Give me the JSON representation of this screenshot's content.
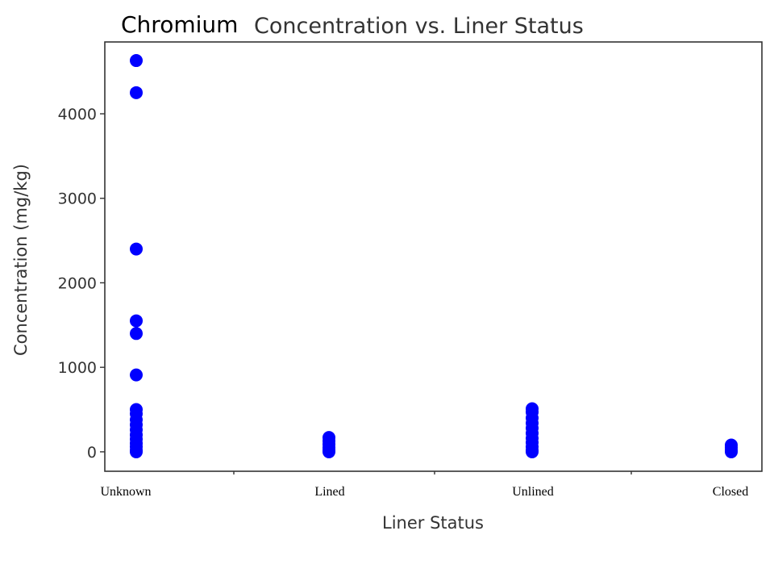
{
  "chart_data": {
    "type": "scatter",
    "title_prefix": "Chromium",
    "title": "Concentration vs. Liner Status",
    "xlabel": "Liner Status",
    "ylabel": "Concentration (mg/kg)",
    "categories": [
      "Unknown",
      "Lined",
      "Unlined",
      "Closed"
    ],
    "ylim": [
      -230,
      4850
    ],
    "yticks": [
      0,
      1000,
      2000,
      3000,
      4000
    ],
    "grid": false,
    "marker_color": "#0000ff",
    "points": [
      {
        "x": "Unknown",
        "y": 4630
      },
      {
        "x": "Unknown",
        "y": 4250
      },
      {
        "x": "Unknown",
        "y": 2400
      },
      {
        "x": "Unknown",
        "y": 1550
      },
      {
        "x": "Unknown",
        "y": 1400
      },
      {
        "x": "Unknown",
        "y": 910
      },
      {
        "x": "Unknown",
        "y": 500
      },
      {
        "x": "Unknown",
        "y": 450
      },
      {
        "x": "Unknown",
        "y": 380
      },
      {
        "x": "Unknown",
        "y": 320
      },
      {
        "x": "Unknown",
        "y": 260
      },
      {
        "x": "Unknown",
        "y": 200
      },
      {
        "x": "Unknown",
        "y": 150
      },
      {
        "x": "Unknown",
        "y": 100
      },
      {
        "x": "Unknown",
        "y": 60
      },
      {
        "x": "Unknown",
        "y": 20
      },
      {
        "x": "Unknown",
        "y": 0
      },
      {
        "x": "Lined",
        "y": 170
      },
      {
        "x": "Lined",
        "y": 130
      },
      {
        "x": "Lined",
        "y": 90
      },
      {
        "x": "Lined",
        "y": 50
      },
      {
        "x": "Lined",
        "y": 20
      },
      {
        "x": "Lined",
        "y": 0
      },
      {
        "x": "Unlined",
        "y": 510
      },
      {
        "x": "Unlined",
        "y": 470
      },
      {
        "x": "Unlined",
        "y": 400
      },
      {
        "x": "Unlined",
        "y": 340
      },
      {
        "x": "Unlined",
        "y": 280
      },
      {
        "x": "Unlined",
        "y": 220
      },
      {
        "x": "Unlined",
        "y": 160
      },
      {
        "x": "Unlined",
        "y": 110
      },
      {
        "x": "Unlined",
        "y": 60
      },
      {
        "x": "Unlined",
        "y": 20
      },
      {
        "x": "Unlined",
        "y": 0
      },
      {
        "x": "Closed",
        "y": 80
      },
      {
        "x": "Closed",
        "y": 50
      },
      {
        "x": "Closed",
        "y": 20
      },
      {
        "x": "Closed",
        "y": 0
      }
    ]
  }
}
